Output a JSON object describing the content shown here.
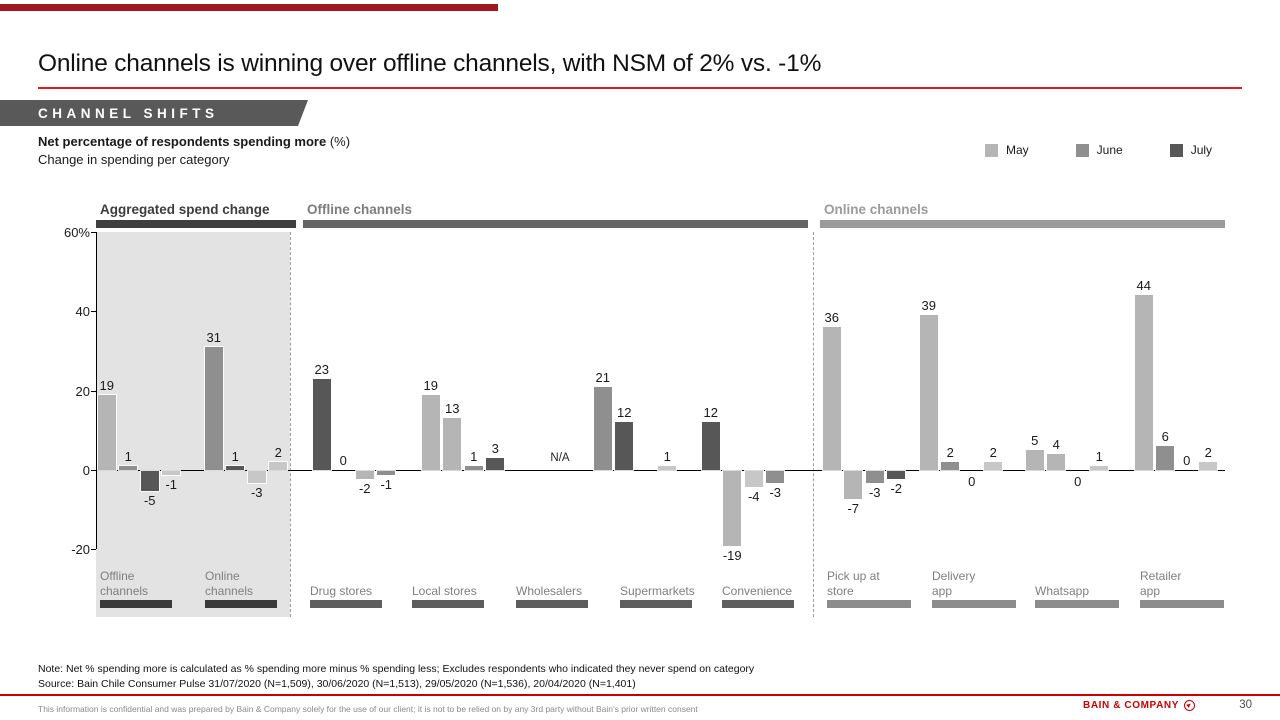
{
  "slide": {
    "title": "Online channels is winning over offline channels, with NSM of 2% vs. -1%",
    "kicker": "CHANNEL SHIFTS",
    "chart_heading_bold": "Net percentage of respondents spending more",
    "chart_heading_suffix": " (%)",
    "chart_heading_line2": "Change in spending per category",
    "note": "Note: Net % spending more is calculated as % spending more minus % spending less; Excludes respondents who indicated they never spend on category",
    "source": "Source: Bain Chile Consumer Pulse 31/07/2020 (N=1,509), 30/06/2020 (N=1,513), 29/05/2020 (N=1,536), 20/04/2020 (N=1,401)",
    "footer_confidential": "This information is confidential and was prepared by Bain & Company solely for the use of our client; it is not to be relied on by any 3rd party without Bain's prior written consent",
    "brand": "BAIN & COMPANY",
    "page_number": "30"
  },
  "legend": {
    "items": [
      {
        "label": "May",
        "color": "#b5b5b5"
      },
      {
        "label": "June",
        "color": "#8f8f8f"
      },
      {
        "label": "July",
        "color": "#575757"
      }
    ]
  },
  "chart_data": {
    "type": "bar",
    "title": "Net percentage of respondents spending more (%)",
    "subtitle": "Change in spending per category",
    "ylim": [
      -20,
      60
    ],
    "grid": false,
    "legend_position": "top-right",
    "legend_entries": [
      "May",
      "June",
      "July"
    ],
    "yticks": [
      {
        "value": 60,
        "label": "60%"
      },
      {
        "value": 40,
        "label": "40"
      },
      {
        "value": 20,
        "label": "20"
      },
      {
        "value": 0,
        "label": "0"
      },
      {
        "value": -20,
        "label": "-20"
      }
    ],
    "shade_colors": {
      "light": "#b5b5b5",
      "medium": "#8f8f8f",
      "dark": "#575757",
      "xlight": "#c7c7c7"
    },
    "sections": [
      {
        "title": "Aggregated spend change",
        "title_color": "#3d3d3d",
        "bar_color": "#3f3f3f",
        "shaded": true
      },
      {
        "title": "Offline channels",
        "title_color": "#7d7d7d",
        "bar_color": "#666666",
        "shaded": false
      },
      {
        "title": "Online channels",
        "title_color": "#9b9b9b",
        "bar_color": "#9a9a9a",
        "shaded": false
      }
    ],
    "categories": [
      {
        "label": "Offline channels",
        "section": 0,
        "bars": [
          {
            "v": 19,
            "shade": "light"
          },
          {
            "v": 1,
            "shade": "medium"
          },
          {
            "v": -5,
            "shade": "dark"
          },
          {
            "v": -1,
            "shade": "xlight"
          }
        ]
      },
      {
        "label": "Online channels",
        "section": 0,
        "bars": [
          {
            "v": 31,
            "shade": "medium"
          },
          {
            "v": 1,
            "shade": "dark"
          },
          {
            "v": -3,
            "shade": "xlight"
          },
          {
            "v": 2,
            "shade": "xlight"
          }
        ]
      },
      {
        "label": "Drug stores",
        "section": 1,
        "bars": [
          {
            "v": 23,
            "shade": "dark"
          },
          {
            "v": 0,
            "shade": "none",
            "label_pos": "above"
          },
          {
            "v": -2,
            "shade": "light"
          },
          {
            "v": -1,
            "shade": "medium"
          }
        ]
      },
      {
        "label": "Local stores",
        "section": 1,
        "bars": [
          {
            "v": 19,
            "shade": "light"
          },
          {
            "v": 13,
            "shade": "light"
          },
          {
            "v": 1,
            "shade": "medium"
          },
          {
            "v": 3,
            "shade": "dark"
          }
        ]
      },
      {
        "label": "Wholesalers",
        "section": 1,
        "na": "N/A",
        "bars": []
      },
      {
        "label": "Supermarkets",
        "section": 1,
        "bars": [
          {
            "v": 21,
            "shade": "medium"
          },
          {
            "v": 12,
            "shade": "dark"
          },
          null,
          {
            "v": 1,
            "shade": "xlight"
          }
        ]
      },
      {
        "label": "Convenience",
        "section": 1,
        "bars": [
          {
            "v": 12,
            "shade": "dark"
          },
          {
            "v": -19,
            "shade": "light"
          },
          {
            "v": -4,
            "shade": "xlight"
          },
          {
            "v": -3,
            "shade": "medium"
          }
        ]
      },
      {
        "label": "Pick up at store",
        "section": 2,
        "bars": [
          {
            "v": 36,
            "shade": "light"
          },
          {
            "v": -7,
            "shade": "light"
          },
          {
            "v": -3,
            "shade": "medium"
          },
          {
            "v": -2,
            "shade": "dark"
          }
        ]
      },
      {
        "label": "Delivery app",
        "section": 2,
        "bars": [
          {
            "v": 39,
            "shade": "light"
          },
          {
            "v": 2,
            "shade": "medium"
          },
          {
            "v": 0,
            "shade": "none"
          },
          {
            "v": 2,
            "shade": "xlight"
          }
        ]
      },
      {
        "label": "Whatsapp",
        "section": 2,
        "bars": [
          {
            "v": 5,
            "shade": "light"
          },
          {
            "v": 4,
            "shade": "light"
          },
          {
            "v": 0,
            "shade": "none"
          },
          {
            "v": 1,
            "shade": "xlight"
          }
        ]
      },
      {
        "label": "Retailer app",
        "section": 2,
        "bars": [
          {
            "v": 44,
            "shade": "light"
          },
          {
            "v": 6,
            "shade": "medium"
          },
          {
            "v": 0,
            "shade": "none",
            "label_pos": "above"
          },
          {
            "v": 2,
            "shade": "xlight"
          }
        ]
      }
    ]
  }
}
